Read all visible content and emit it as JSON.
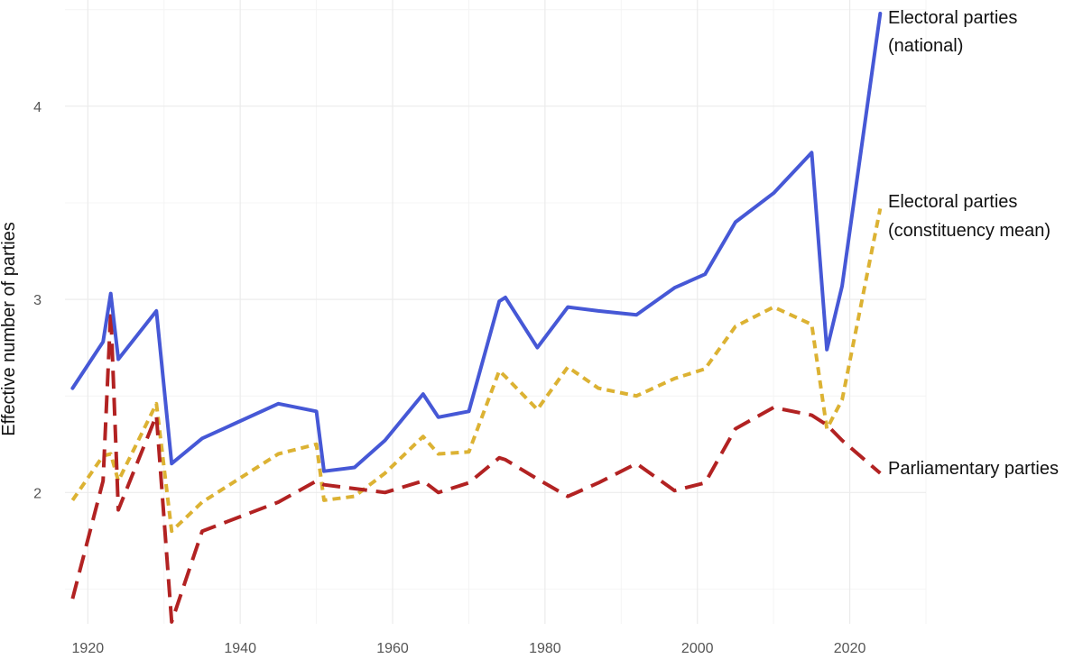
{
  "chart_data": {
    "type": "line",
    "title": "",
    "xlabel": "",
    "ylabel": "Effective number of parties",
    "xlim": [
      1917,
      2030
    ],
    "ylim": [
      1.32,
      4.55
    ],
    "x_ticks": [
      1920,
      1940,
      1960,
      1980,
      2000,
      2020
    ],
    "y_ticks": [
      2,
      3,
      4
    ],
    "grid": true,
    "legend": "direct labels at line ends (right)",
    "series": [
      {
        "name": "Electoral parties (national)",
        "label_lines": [
          "Electoral parties",
          "(national)"
        ],
        "color": "#4658d6",
        "style": "solid",
        "points": [
          [
            1918,
            2.54
          ],
          [
            1922,
            2.78
          ],
          [
            1923,
            3.03
          ],
          [
            1924,
            2.69
          ],
          [
            1929,
            2.94
          ],
          [
            1931,
            2.15
          ],
          [
            1935,
            2.28
          ],
          [
            1945,
            2.46
          ],
          [
            1950,
            2.42
          ],
          [
            1951,
            2.11
          ],
          [
            1955,
            2.13
          ],
          [
            1959,
            2.27
          ],
          [
            1964,
            2.51
          ],
          [
            1966,
            2.39
          ],
          [
            1970,
            2.42
          ],
          [
            1974,
            2.99
          ],
          [
            1974.8,
            3.01
          ],
          [
            1979,
            2.75
          ],
          [
            1983,
            2.96
          ],
          [
            1987,
            2.94
          ],
          [
            1992,
            2.92
          ],
          [
            1997,
            3.06
          ],
          [
            2001,
            3.13
          ],
          [
            2005,
            3.4
          ],
          [
            2010,
            3.55
          ],
          [
            2015,
            3.76
          ],
          [
            2017,
            2.74
          ],
          [
            2019,
            3.07
          ],
          [
            2024,
            4.48
          ]
        ]
      },
      {
        "name": "Electoral parties (constituency mean)",
        "label_lines": [
          "Electoral parties",
          "(constituency mean)"
        ],
        "color": "#dcb233",
        "style": "dotted",
        "points": [
          [
            1918,
            1.96
          ],
          [
            1922,
            2.19
          ],
          [
            1923,
            2.2
          ],
          [
            1924,
            2.06
          ],
          [
            1929,
            2.46
          ],
          [
            1931,
            1.8
          ],
          [
            1935,
            1.95
          ],
          [
            1945,
            2.2
          ],
          [
            1950,
            2.25
          ],
          [
            1951,
            1.96
          ],
          [
            1955,
            1.98
          ],
          [
            1959,
            2.1
          ],
          [
            1964,
            2.29
          ],
          [
            1966,
            2.2
          ],
          [
            1970,
            2.21
          ],
          [
            1974,
            2.63
          ],
          [
            1974.8,
            2.6
          ],
          [
            1979,
            2.43
          ],
          [
            1983,
            2.65
          ],
          [
            1987,
            2.54
          ],
          [
            1992,
            2.5
          ],
          [
            1997,
            2.59
          ],
          [
            2001,
            2.64
          ],
          [
            2005,
            2.86
          ],
          [
            2010,
            2.96
          ],
          [
            2015,
            2.87
          ],
          [
            2017,
            2.33
          ],
          [
            2019,
            2.48
          ],
          [
            2024,
            3.47
          ]
        ]
      },
      {
        "name": "Parliamentary parties",
        "label_lines": [
          "Parliamentary parties"
        ],
        "color": "#b22222",
        "style": "dashed",
        "points": [
          [
            1918,
            1.45
          ],
          [
            1922,
            2.06
          ],
          [
            1923,
            2.94
          ],
          [
            1924,
            1.91
          ],
          [
            1929,
            2.4
          ],
          [
            1931,
            1.33
          ],
          [
            1935,
            1.8
          ],
          [
            1945,
            1.95
          ],
          [
            1950,
            2.06
          ],
          [
            1951,
            2.04
          ],
          [
            1955,
            2.02
          ],
          [
            1959,
            2.0
          ],
          [
            1964,
            2.06
          ],
          [
            1966,
            2.0
          ],
          [
            1970,
            2.05
          ],
          [
            1974,
            2.18
          ],
          [
            1974.8,
            2.17
          ],
          [
            1979,
            2.07
          ],
          [
            1983,
            1.98
          ],
          [
            1987,
            2.05
          ],
          [
            1992,
            2.15
          ],
          [
            1997,
            2.01
          ],
          [
            2001,
            2.05
          ],
          [
            2005,
            2.33
          ],
          [
            2010,
            2.44
          ],
          [
            2015,
            2.4
          ],
          [
            2017,
            2.35
          ],
          [
            2019,
            2.27
          ],
          [
            2024,
            2.1
          ]
        ]
      }
    ]
  }
}
